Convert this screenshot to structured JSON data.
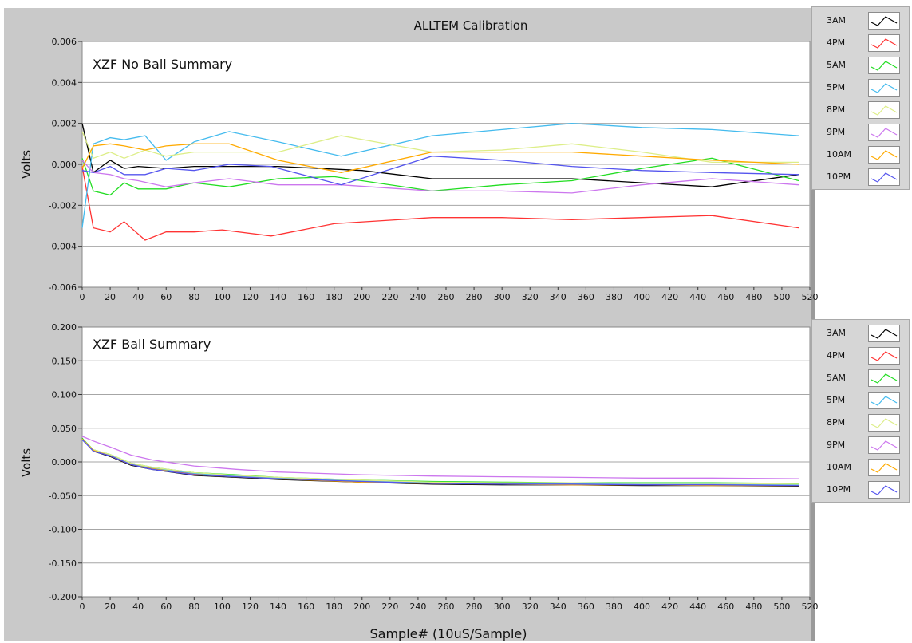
{
  "window": {
    "title": "ALLTEM Calibration",
    "x_axis_label": "Sample# (10uS/Sample)"
  },
  "legend": {
    "series": [
      {
        "name": "3AM",
        "color": "#000000"
      },
      {
        "name": "4PM",
        "color": "#ff3333"
      },
      {
        "name": "5AM",
        "color": "#22dd22"
      },
      {
        "name": "5PM",
        "color": "#44bbee"
      },
      {
        "name": "8PM",
        "color": "#ddee88"
      },
      {
        "name": "9PM",
        "color": "#cc77ee"
      },
      {
        "name": "10AM",
        "color": "#ffaa00"
      },
      {
        "name": "10PM",
        "color": "#5555ee"
      }
    ]
  },
  "chart_data": [
    {
      "type": "line",
      "title": "ALLTEM Calibration",
      "plot_label": "XZF No Ball Summary",
      "xlabel": "",
      "ylabel": "Volts",
      "xlim": [
        0,
        520
      ],
      "ylim": [
        -0.006,
        0.006
      ],
      "x_ticks": [
        0,
        20,
        40,
        60,
        80,
        100,
        120,
        140,
        160,
        180,
        200,
        220,
        240,
        260,
        280,
        300,
        320,
        340,
        360,
        380,
        400,
        420,
        440,
        460,
        480,
        500,
        520
      ],
      "y_ticks": [
        -0.006,
        -0.004,
        -0.002,
        0.0,
        0.002,
        0.004,
        0.006
      ],
      "y_tick_labels": [
        "-0.006",
        "-0.004",
        "-0.002",
        "0.000",
        "0.002",
        "0.004",
        "0.006"
      ],
      "grid": "horizontal",
      "series": [
        {
          "name": "3AM",
          "color": "#000000",
          "x": [
            0,
            8,
            20,
            30,
            40,
            60,
            80,
            100,
            140,
            200,
            250,
            300,
            350,
            400,
            450,
            512
          ],
          "y": [
            0.002,
            -0.0004,
            0.0002,
            -0.0002,
            -0.0001,
            -0.0002,
            -0.0001,
            -0.0001,
            -0.0001,
            -0.0003,
            -0.0007,
            -0.0007,
            -0.0007,
            -0.0009,
            -0.0011,
            -0.0005
          ]
        },
        {
          "name": "4PM",
          "color": "#ff3333",
          "x": [
            0,
            8,
            20,
            30,
            45,
            60,
            80,
            100,
            135,
            180,
            250,
            300,
            350,
            400,
            450,
            512
          ],
          "y": [
            -0.0001,
            -0.0031,
            -0.0033,
            -0.0028,
            -0.0037,
            -0.0033,
            -0.0033,
            -0.0032,
            -0.0035,
            -0.0029,
            -0.0026,
            -0.0026,
            -0.0027,
            -0.0026,
            -0.0025,
            -0.0031
          ]
        },
        {
          "name": "5AM",
          "color": "#22dd22",
          "x": [
            0,
            8,
            20,
            30,
            40,
            60,
            80,
            105,
            140,
            180,
            250,
            300,
            350,
            400,
            450,
            512
          ],
          "y": [
            0.0003,
            -0.0013,
            -0.0015,
            -0.0009,
            -0.0012,
            -0.0012,
            -0.0009,
            -0.0011,
            -0.0007,
            -0.0006,
            -0.0013,
            -0.001,
            -0.0008,
            -0.0002,
            0.0003,
            -0.0008
          ]
        },
        {
          "name": "5PM",
          "color": "#44bbee",
          "x": [
            0,
            8,
            20,
            30,
            45,
            60,
            80,
            105,
            140,
            185,
            250,
            300,
            350,
            400,
            450,
            512
          ],
          "y": [
            -0.0031,
            0.001,
            0.0013,
            0.0012,
            0.0014,
            0.0002,
            0.0011,
            0.0016,
            0.0011,
            0.0004,
            0.0014,
            0.0017,
            0.002,
            0.0018,
            0.0017,
            0.0014
          ]
        },
        {
          "name": "8PM",
          "color": "#ddee88",
          "x": [
            0,
            8,
            20,
            30,
            45,
            60,
            80,
            105,
            140,
            185,
            250,
            300,
            350,
            400,
            450,
            512
          ],
          "y": [
            0.0016,
            0.0003,
            0.0006,
            0.0003,
            0.0007,
            0.0004,
            0.0006,
            0.0006,
            0.0006,
            0.0014,
            0.0006,
            0.0007,
            0.001,
            0.0006,
            0.0001,
            0.0001
          ]
        },
        {
          "name": "9PM",
          "color": "#cc77ee",
          "x": [
            0,
            8,
            20,
            30,
            40,
            60,
            80,
            105,
            140,
            185,
            250,
            300,
            350,
            400,
            450,
            512
          ],
          "y": [
            0.0002,
            -0.0004,
            -0.0005,
            -0.0007,
            -0.0008,
            -0.0011,
            -0.0009,
            -0.0007,
            -0.001,
            -0.001,
            -0.0013,
            -0.0013,
            -0.0014,
            -0.001,
            -0.0007,
            -0.001
          ]
        },
        {
          "name": "10AM",
          "color": "#ffaa00",
          "x": [
            0,
            8,
            20,
            30,
            45,
            60,
            80,
            105,
            140,
            185,
            250,
            300,
            350,
            400,
            450,
            512
          ],
          "y": [
            -0.0002,
            0.0009,
            0.001,
            0.0009,
            0.0007,
            0.0009,
            0.001,
            0.001,
            0.0002,
            -0.0004,
            0.0006,
            0.0006,
            0.0006,
            0.0004,
            0.0002,
            0.0
          ]
        },
        {
          "name": "10PM",
          "color": "#5555ee",
          "x": [
            0,
            8,
            20,
            30,
            45,
            60,
            80,
            105,
            135,
            185,
            250,
            300,
            350,
            400,
            450,
            512
          ],
          "y": [
            -0.0003,
            -0.0004,
            -0.0001,
            -0.0005,
            -0.0005,
            -0.0002,
            -0.0003,
            0.0,
            -0.0001,
            -0.001,
            0.0004,
            0.0002,
            -0.0001,
            -0.0003,
            -0.0004,
            -0.0005
          ]
        }
      ]
    },
    {
      "type": "line",
      "title": "",
      "plot_label": "XZF Ball Summary",
      "xlabel": "Sample# (10uS/Sample)",
      "ylabel": "Volts",
      "xlim": [
        0,
        520
      ],
      "ylim": [
        -0.2,
        0.2
      ],
      "x_ticks": [
        0,
        20,
        40,
        60,
        80,
        100,
        120,
        140,
        160,
        180,
        200,
        220,
        240,
        260,
        280,
        300,
        320,
        340,
        360,
        380,
        400,
        420,
        440,
        460,
        480,
        500,
        520
      ],
      "y_ticks": [
        -0.2,
        -0.15,
        -0.1,
        -0.05,
        0.0,
        0.05,
        0.1,
        0.15,
        0.2
      ],
      "y_tick_labels": [
        "-0.200",
        "-0.150",
        "-0.100",
        "-0.050",
        "0.000",
        "0.050",
        "0.100",
        "0.150",
        "0.200"
      ],
      "grid": "horizontal",
      "series": [
        {
          "name": "3AM",
          "color": "#000000",
          "x": [
            0,
            8,
            20,
            35,
            50,
            80,
            110,
            140,
            200,
            250,
            300,
            350,
            400,
            450,
            512
          ],
          "y": [
            0.035,
            0.016,
            0.008,
            -0.005,
            -0.011,
            -0.02,
            -0.023,
            -0.026,
            -0.03,
            -0.033,
            -0.034,
            -0.034,
            -0.035,
            -0.035,
            -0.036
          ]
        },
        {
          "name": "4PM",
          "color": "#ff3333",
          "x": [
            0,
            8,
            20,
            35,
            50,
            80,
            110,
            140,
            200,
            250,
            300,
            350,
            400,
            450,
            512
          ],
          "y": [
            0.034,
            0.017,
            0.009,
            -0.004,
            -0.01,
            -0.018,
            -0.021,
            -0.025,
            -0.029,
            -0.032,
            -0.032,
            -0.033,
            -0.033,
            -0.034,
            -0.034
          ]
        },
        {
          "name": "5AM",
          "color": "#22dd22",
          "x": [
            0,
            8,
            20,
            35,
            50,
            80,
            110,
            140,
            200,
            250,
            300,
            350,
            400,
            450,
            512
          ],
          "y": [
            0.035,
            0.018,
            0.011,
            -0.002,
            -0.008,
            -0.016,
            -0.019,
            -0.023,
            -0.027,
            -0.029,
            -0.03,
            -0.031,
            -0.031,
            -0.031,
            -0.032
          ]
        },
        {
          "name": "5PM",
          "color": "#44bbee",
          "x": [
            0,
            8,
            20,
            35,
            50,
            80,
            110,
            140,
            200,
            250,
            300,
            350,
            400,
            450,
            512
          ],
          "y": [
            0.033,
            0.017,
            0.01,
            -0.003,
            -0.009,
            -0.017,
            -0.021,
            -0.024,
            -0.028,
            -0.031,
            -0.032,
            -0.032,
            -0.033,
            -0.033,
            -0.034
          ]
        },
        {
          "name": "8PM",
          "color": "#ddee88",
          "x": [
            0,
            8,
            20,
            35,
            50,
            80,
            110,
            140,
            200,
            250,
            300,
            350,
            400,
            450,
            512
          ],
          "y": [
            0.034,
            0.018,
            0.011,
            -0.002,
            -0.008,
            -0.016,
            -0.02,
            -0.023,
            -0.027,
            -0.03,
            -0.031,
            -0.031,
            -0.032,
            -0.032,
            -0.033
          ]
        },
        {
          "name": "9PM",
          "color": "#cc77ee",
          "x": [
            0,
            8,
            20,
            35,
            50,
            80,
            110,
            140,
            200,
            250,
            300,
            350,
            400,
            450,
            512
          ],
          "y": [
            0.038,
            0.031,
            0.022,
            0.01,
            0.003,
            -0.006,
            -0.011,
            -0.015,
            -0.019,
            -0.021,
            -0.022,
            -0.023,
            -0.024,
            -0.024,
            -0.025
          ]
        },
        {
          "name": "10AM",
          "color": "#ffaa00",
          "x": [
            0,
            8,
            20,
            35,
            50,
            80,
            110,
            140,
            200,
            250,
            300,
            350,
            400,
            450,
            512
          ],
          "y": [
            0.034,
            0.017,
            0.009,
            -0.004,
            -0.01,
            -0.019,
            -0.022,
            -0.025,
            -0.03,
            -0.032,
            -0.033,
            -0.034,
            -0.034,
            -0.035,
            -0.035
          ]
        },
        {
          "name": "10PM",
          "color": "#5555ee",
          "x": [
            0,
            8,
            20,
            35,
            50,
            80,
            110,
            140,
            200,
            250,
            300,
            350,
            400,
            450,
            512
          ],
          "y": [
            0.033,
            0.016,
            0.009,
            -0.004,
            -0.011,
            -0.019,
            -0.022,
            -0.025,
            -0.029,
            -0.032,
            -0.033,
            -0.033,
            -0.034,
            -0.034,
            -0.035
          ]
        }
      ]
    }
  ]
}
